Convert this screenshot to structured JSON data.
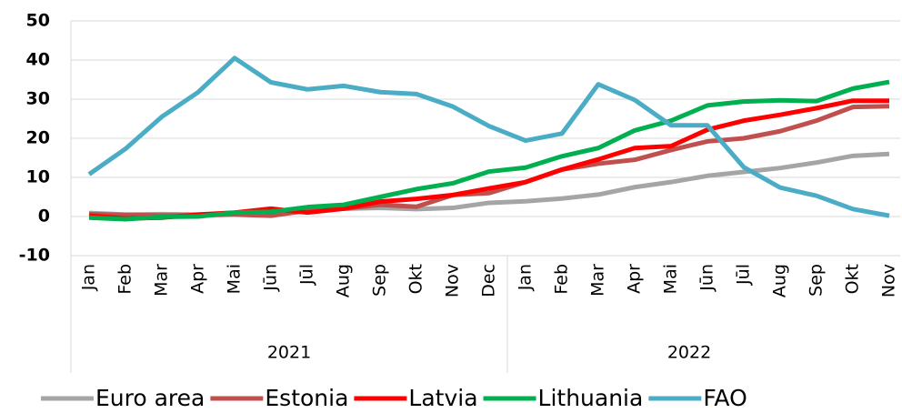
{
  "chart_data": {
    "type": "line",
    "categories": [
      "Jan",
      "Feb",
      "Mar",
      "Apr",
      "Mai",
      "Jūn",
      "Jūl",
      "Aug",
      "Sep",
      "Okt",
      "Nov",
      "Dec",
      "Jan",
      "Feb",
      "Mar",
      "Apr",
      "Mai",
      "Jūn",
      "Jūl",
      "Aug",
      "Sep",
      "Okt",
      "Nov"
    ],
    "groups": [
      {
        "label": "2021",
        "size": 12
      },
      {
        "label": "2022",
        "size": 11
      }
    ],
    "ylim": [
      -10,
      50
    ],
    "yticks": [
      -10,
      0,
      10,
      20,
      30,
      40,
      50
    ],
    "grid": true,
    "legend": "bottom",
    "series": [
      {
        "name": "Euro area",
        "color": "#a5a5a5",
        "values": [
          0.9,
          0.5,
          0.6,
          0.5,
          0.7,
          0.5,
          1.6,
          2.0,
          2.2,
          1.9,
          2.2,
          3.5,
          3.9,
          4.6,
          5.6,
          7.5,
          8.8,
          10.4,
          11.4,
          12.4,
          13.8,
          15.5,
          16.0
        ]
      },
      {
        "name": "Estonia",
        "color": "#c0504d",
        "values": [
          0.6,
          0.4,
          0.3,
          0.3,
          0.5,
          0.2,
          1.5,
          2.0,
          3.0,
          2.5,
          5.5,
          6.0,
          8.8,
          12.0,
          13.5,
          14.5,
          17.0,
          19.2,
          20.0,
          21.8,
          24.5,
          28.0,
          28.2
        ]
      },
      {
        "name": "Latvia",
        "color": "#ff0000",
        "values": [
          0.2,
          -0.5,
          -0.3,
          0.5,
          1.0,
          2.0,
          1.0,
          2.0,
          3.8,
          4.5,
          5.5,
          7.2,
          8.8,
          12.0,
          14.6,
          17.5,
          18.0,
          22.2,
          24.5,
          26.0,
          27.7,
          29.6,
          29.6
        ]
      },
      {
        "name": "Lithuania",
        "color": "#00b050",
        "values": [
          -0.3,
          -0.7,
          -0.1,
          0.0,
          1.0,
          1.2,
          2.4,
          3.0,
          5.0,
          7.0,
          8.5,
          11.5,
          12.5,
          15.4,
          17.5,
          22.0,
          24.5,
          28.4,
          29.4,
          29.7,
          29.5,
          32.7,
          34.4
        ]
      },
      {
        "name": "FAO",
        "color": "#4bacc6",
        "values": [
          10.8,
          17.3,
          25.5,
          31.8,
          40.5,
          34.3,
          32.5,
          33.4,
          31.8,
          31.3,
          28.1,
          23.1,
          19.4,
          21.2,
          33.8,
          29.8,
          23.3,
          23.3,
          12.6,
          7.4,
          5.3,
          1.9,
          0.2
        ]
      }
    ]
  }
}
